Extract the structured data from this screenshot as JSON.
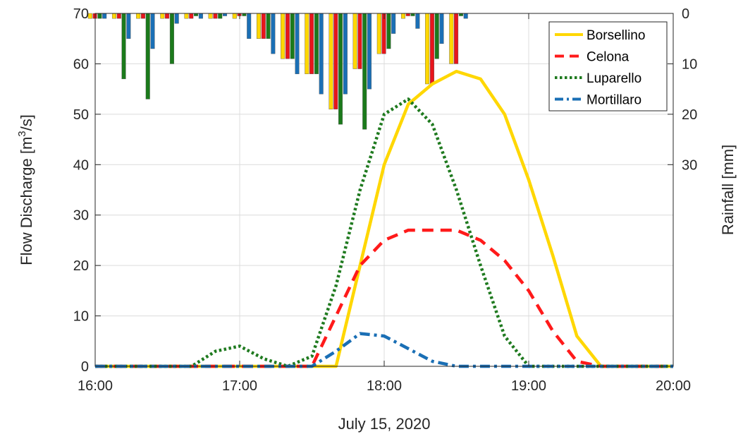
{
  "chart_data": {
    "type": "line",
    "xlabel": "July 15, 2020",
    "ylabel_left": "Flow Discharge [m",
    "ylabel_left_sup": "3",
    "ylabel_left_tail": "/s]",
    "ylabel_right": "Rainfall [mm]",
    "xlim": [
      "16:00",
      "20:00"
    ],
    "x_ticks": [
      "16:00",
      "17:00",
      "18:00",
      "19:00",
      "20:00"
    ],
    "ylim_left": [
      0,
      70
    ],
    "y_ticks_left": [
      0,
      10,
      20,
      30,
      40,
      50,
      60,
      70
    ],
    "ylim_right_reversed": [
      0,
      70
    ],
    "y_ticks_right": [
      0,
      10,
      20,
      30
    ],
    "grid": true,
    "legend_position": "top-right",
    "x": [
      "16:00",
      "16:10",
      "16:20",
      "16:30",
      "16:40",
      "16:50",
      "17:00",
      "17:10",
      "17:20",
      "17:30",
      "17:40",
      "17:50",
      "18:00",
      "18:10",
      "18:20",
      "18:30",
      "18:40",
      "18:50",
      "19:00",
      "19:10",
      "19:20",
      "19:30",
      "19:40",
      "19:50",
      "20:00"
    ],
    "series": [
      {
        "name": "Borsellino",
        "color": "#FFD700",
        "dash": "solid",
        "values": [
          0,
          0,
          0,
          0,
          0,
          0,
          0,
          0,
          0,
          0,
          0,
          20,
          40,
          52,
          56,
          58.5,
          57,
          50,
          37,
          22,
          6,
          0,
          0,
          0,
          0
        ]
      },
      {
        "name": "Celona",
        "color": "#FF1A1A",
        "dash": "dashed",
        "values": [
          0,
          0,
          0,
          0,
          0,
          0,
          0,
          0,
          0,
          0,
          10,
          20,
          25,
          27,
          27,
          27,
          25,
          21,
          15,
          7,
          1,
          0,
          0,
          0,
          0
        ]
      },
      {
        "name": "Luparello",
        "color": "#1F7A1F",
        "dash": "dotted",
        "values": [
          0,
          0,
          0,
          0,
          0,
          3,
          4,
          1.5,
          0,
          2,
          16,
          35,
          50,
          53,
          48,
          35,
          20,
          6,
          0,
          0,
          0,
          0,
          0,
          0,
          0
        ]
      },
      {
        "name": "Mortillaro",
        "color": "#1A6FB5",
        "dash": "dashdot",
        "values": [
          0,
          0,
          0,
          0,
          0,
          0,
          0,
          0,
          0,
          0,
          3,
          6.5,
          6,
          3.5,
          1,
          0,
          0,
          0,
          0,
          0,
          0,
          0,
          0,
          0,
          0
        ]
      }
    ],
    "rainfall": {
      "x": [
        "16:00",
        "16:10",
        "16:20",
        "16:30",
        "16:40",
        "16:50",
        "17:00",
        "17:10",
        "17:20",
        "17:30",
        "17:40",
        "17:50",
        "18:00",
        "18:10",
        "18:20",
        "18:30"
      ],
      "series": [
        {
          "station": "Borsellino",
          "color": "#FFD700",
          "values": [
            1,
            1,
            1,
            1,
            1,
            1,
            1,
            5,
            9,
            12,
            19,
            11,
            8,
            1,
            14,
            10
          ]
        },
        {
          "station": "Celona",
          "color": "#E8151B",
          "values": [
            1,
            1,
            1,
            1,
            1,
            1,
            0.5,
            5,
            9,
            12,
            19,
            11,
            8,
            0.5,
            14,
            10
          ]
        },
        {
          "station": "Luparello",
          "color": "#1B7A1B",
          "values": [
            1,
            13,
            17,
            10,
            0.5,
            1,
            0.5,
            5,
            9,
            12,
            22,
            23,
            7,
            0.5,
            9,
            0.5
          ]
        },
        {
          "station": "Mortillaro",
          "color": "#1A6FB5",
          "values": [
            1,
            5,
            7,
            2,
            1,
            0.5,
            5,
            8,
            12,
            16,
            16,
            15,
            4,
            3,
            6,
            1
          ]
        }
      ]
    }
  }
}
